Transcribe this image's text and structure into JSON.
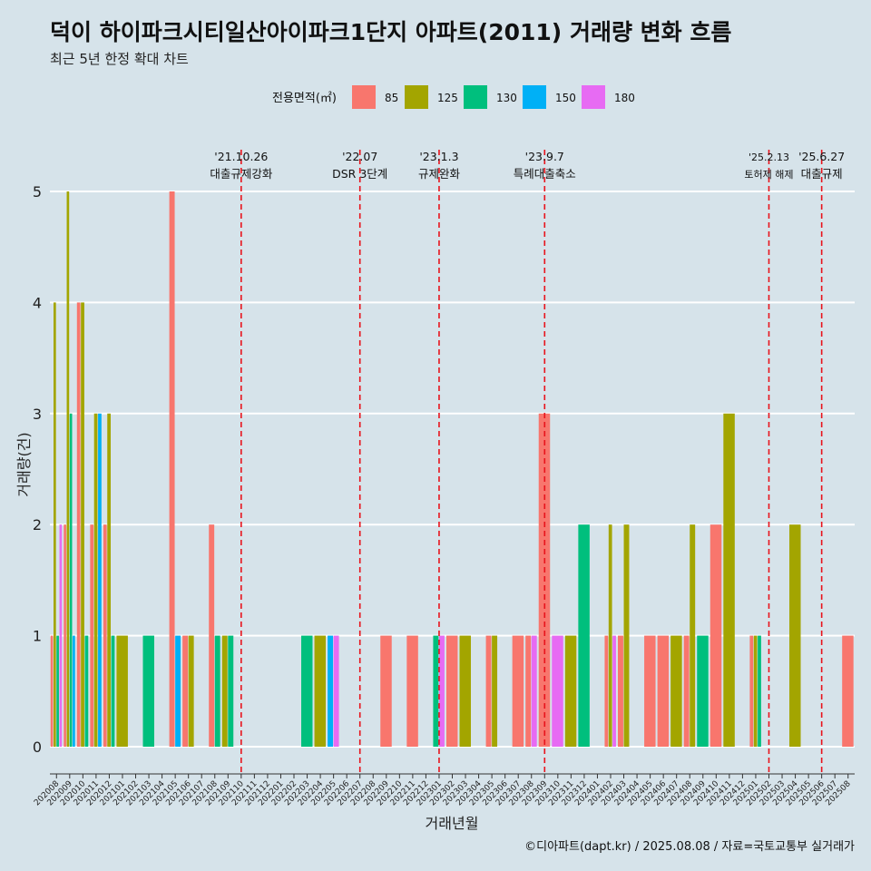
{
  "title": "덕이 하이파크시티일산아이파크1단지 아파트(2011) 거래량 변화 흐름",
  "subtitle": "최근 5년 한정 확대 차트",
  "caption": "©디아파트(dapt.kr) / 2025.08.08 / 자료=국토교통부 실거래가",
  "colors": {
    "85": "#f8766d",
    "125": "#a3a500",
    "130": "#00bf7d",
    "150": "#00b0f6",
    "180": "#e76bf3"
  },
  "chart_data": {
    "type": "bar",
    "title": "덕이 하이파크시티일산아이파크1단지 아파트(2011) 거래량 변화 흐름",
    "subtitle": "최근 5년 한정 확대 차트",
    "xlabel": "거래년월",
    "ylabel": "거래량(건)",
    "ylim": [
      0,
      5
    ],
    "yticks": [
      0,
      1,
      2,
      3,
      4,
      5
    ],
    "grid": true,
    "legend_title": "전용면적(㎡)",
    "legend_position": "top",
    "legend": [
      "85",
      "125",
      "130",
      "150",
      "180"
    ],
    "categories": [
      "202008",
      "202009",
      "202010",
      "202011",
      "202012",
      "202101",
      "202102",
      "202103",
      "202104",
      "202105",
      "202106",
      "202107",
      "202108",
      "202109",
      "202110",
      "202111",
      "202112",
      "202201",
      "202202",
      "202203",
      "202204",
      "202205",
      "202206",
      "202207",
      "202208",
      "202209",
      "202210",
      "202211",
      "202212",
      "202301",
      "202302",
      "202303",
      "202304",
      "202305",
      "202306",
      "202307",
      "202308",
      "202309",
      "202310",
      "202311",
      "202312",
      "202401",
      "202402",
      "202403",
      "202404",
      "202405",
      "202406",
      "202407",
      "202408",
      "202409",
      "202410",
      "202411",
      "202412",
      "202501",
      "202502",
      "202503",
      "202504",
      "202505",
      "202506",
      "202507",
      "202508"
    ],
    "series": [
      {
        "name": "85",
        "values": [
          1,
          2,
          4,
          2,
          2,
          0,
          0,
          0,
          0,
          5,
          1,
          0,
          2,
          0,
          0,
          0,
          0,
          0,
          0,
          0,
          0,
          0,
          0,
          0,
          0,
          1,
          0,
          1,
          0,
          0,
          1,
          0,
          0,
          1,
          0,
          1,
          1,
          3,
          0,
          0,
          0,
          0,
          1,
          1,
          0,
          1,
          1,
          0,
          1,
          0,
          2,
          0,
          0,
          1,
          0,
          0,
          0,
          0,
          0,
          0,
          1
        ]
      },
      {
        "name": "125",
        "values": [
          4,
          5,
          4,
          3,
          3,
          1,
          0,
          0,
          0,
          0,
          1,
          0,
          0,
          1,
          0,
          0,
          0,
          0,
          0,
          0,
          1,
          0,
          0,
          0,
          0,
          0,
          0,
          0,
          0,
          0,
          0,
          1,
          0,
          1,
          0,
          0,
          0,
          0,
          0,
          1,
          0,
          0,
          2,
          2,
          0,
          0,
          0,
          1,
          2,
          0,
          0,
          3,
          0,
          1,
          0,
          0,
          2,
          0,
          0,
          0,
          0
        ]
      },
      {
        "name": "130",
        "values": [
          1,
          3,
          1,
          0,
          1,
          0,
          0,
          1,
          0,
          0,
          0,
          0,
          1,
          1,
          0,
          0,
          0,
          0,
          0,
          1,
          0,
          0,
          0,
          0,
          0,
          0,
          0,
          0,
          0,
          1,
          0,
          0,
          0,
          0,
          0,
          0,
          0,
          0,
          0,
          0,
          2,
          0,
          0,
          0,
          0,
          0,
          0,
          0,
          0,
          1,
          0,
          0,
          0,
          1,
          0,
          0,
          0,
          0,
          0,
          0,
          0
        ]
      },
      {
        "name": "150",
        "values": [
          0,
          1,
          0,
          3,
          0,
          0,
          0,
          0,
          0,
          1,
          0,
          0,
          0,
          0,
          0,
          0,
          0,
          0,
          0,
          0,
          0,
          1,
          0,
          0,
          0,
          0,
          0,
          0,
          0,
          0,
          0,
          0,
          0,
          0,
          0,
          0,
          0,
          0,
          0,
          0,
          0,
          0,
          0,
          0,
          0,
          0,
          0,
          0,
          0,
          0,
          0,
          0,
          0,
          0,
          0,
          0,
          0,
          0,
          0,
          0,
          0
        ]
      },
      {
        "name": "180",
        "values": [
          2,
          0,
          0,
          0,
          0,
          0,
          0,
          0,
          0,
          0,
          0,
          0,
          0,
          0,
          0,
          0,
          0,
          0,
          0,
          0,
          0,
          1,
          0,
          0,
          0,
          0,
          0,
          0,
          0,
          1,
          0,
          0,
          0,
          0,
          0,
          0,
          1,
          0,
          1,
          0,
          0,
          0,
          1,
          0,
          0,
          0,
          0,
          0,
          0,
          0,
          0,
          0,
          0,
          0,
          0,
          0,
          0,
          0,
          0,
          0,
          0
        ]
      }
    ],
    "annotations": [
      {
        "category": "202110",
        "date": "'21.10.26",
        "text": "대출규제강화"
      },
      {
        "category": "202207",
        "date": "'22.07",
        "text": "DSR 3단계"
      },
      {
        "category": "202301",
        "date": "'23.1.3",
        "text": "규제완화"
      },
      {
        "category": "202309",
        "date": "'23.9.7",
        "text": "특례대출축소"
      },
      {
        "category": "202502",
        "date": "'25.2.13",
        "text": "토허제 해제"
      },
      {
        "category": "202506",
        "date": "'25.6.27",
        "text": "대출규제"
      }
    ]
  }
}
